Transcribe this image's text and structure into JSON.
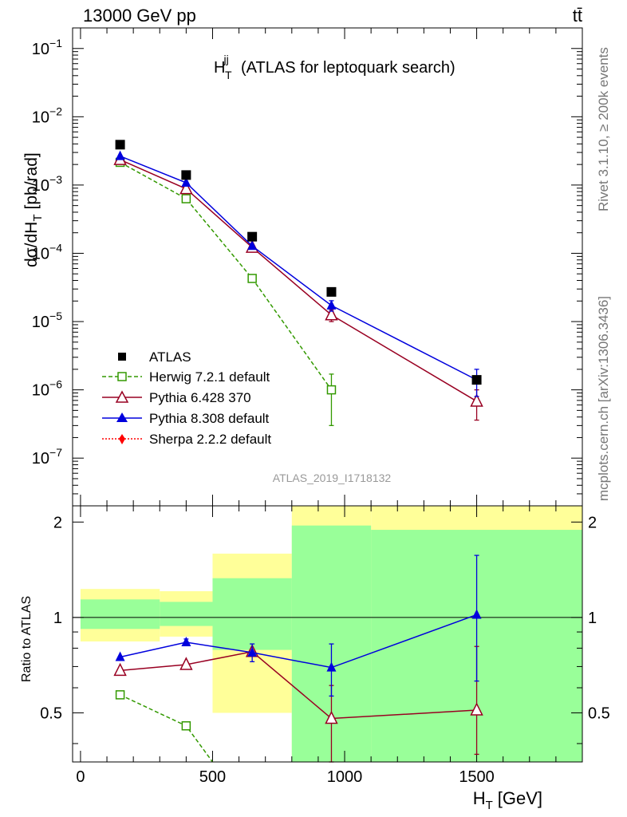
{
  "header": {
    "left": "13000 GeV pp",
    "right": "tt̄"
  },
  "side_labels": {
    "rivet": "Rivet 3.1.10, ≥ 200k events",
    "mcplots": "mcplots.cern.ch [arXiv:1306.3436]"
  },
  "watermark": "ATLAS_2019_I1718132",
  "chart_data": [
    {
      "type": "scatter",
      "title": "H_T^jj (ATLAS for leptoquark search)",
      "title_main": "H",
      "title_sup": "jj",
      "title_sub": "T",
      "title_rest": "(ATLAS for leptoquark search)",
      "ylabel": "dσ/dH_T [pb/rad]",
      "ylabel_main": "dσ/dH",
      "ylabel_sub": "T",
      "ylabel_rest": "[pb/rad]",
      "yscale": "log",
      "ylim": [
        2e-08,
        0.2
      ],
      "xlim": [
        -30,
        1900
      ],
      "ytick_labels": [
        {
          "base": "10",
          "exp": "−1",
          "value": 0.1
        },
        {
          "base": "10",
          "exp": "−2",
          "value": 0.01
        },
        {
          "base": "10",
          "exp": "−3",
          "value": 0.001
        },
        {
          "base": "10",
          "exp": "−4",
          "value": 0.0001
        },
        {
          "base": "10",
          "exp": "−5",
          "value": 1e-05
        },
        {
          "base": "10",
          "exp": "−6",
          "value": 1e-06
        },
        {
          "base": "10",
          "exp": "−7",
          "value": 1e-07
        }
      ],
      "legend_position": "bottom-left",
      "series": [
        {
          "name": "ATLAS",
          "color": "#000000",
          "marker": "square-filled",
          "line": "none",
          "x": [
            150,
            400,
            650,
            950,
            1500
          ],
          "y": [
            0.0039,
            0.0014,
            0.000175,
            2.72e-05,
            1.4e-06
          ]
        },
        {
          "name": "Herwig 7.2.1 default",
          "color": "#339900",
          "marker": "square-open",
          "line": "dashed",
          "x": [
            150,
            400,
            650,
            950
          ],
          "y": [
            0.00215,
            0.00063,
            4.28e-05,
            1e-06
          ],
          "err_low": [
            0,
            0,
            0,
            7e-07
          ],
          "err_high": [
            0,
            0,
            0,
            7e-07
          ]
        },
        {
          "name": "Pythia 6.428 370",
          "color": "#990022",
          "marker": "triangle-open",
          "line": "solid",
          "x": [
            150,
            400,
            650,
            950,
            1500
          ],
          "y": [
            0.00235,
            0.00088,
            0.000122,
            1.25e-05,
            6.8e-07
          ],
          "err_low": [
            0,
            0,
            0,
            2.5e-06,
            3.2e-07
          ],
          "err_high": [
            0,
            0,
            0,
            2.5e-06,
            3.2e-07
          ]
        },
        {
          "name": "Pythia 8.308 default",
          "color": "#0000dd",
          "marker": "triangle-filled",
          "line": "solid",
          "x": [
            150,
            400,
            650,
            950,
            1500
          ],
          "y": [
            0.00265,
            0.00108,
            0.000128,
            1.72e-05,
            1.4e-06
          ],
          "err_low": [
            0,
            0,
            0,
            3e-06,
            6e-07
          ],
          "err_high": [
            0,
            0,
            0,
            3e-06,
            6e-07
          ]
        },
        {
          "name": "Sherpa 2.2.2 default",
          "color": "#ff0000",
          "marker": "diamond-filled",
          "line": "dotted",
          "x": [],
          "y": []
        }
      ]
    },
    {
      "type": "scatter",
      "ylabel": "Ratio to ATLAS",
      "xlabel": "H_T [GeV]",
      "xlabel_main": "H",
      "xlabel_sub": "T",
      "xlabel_rest": "[GeV]",
      "xlim": [
        -30,
        1900
      ],
      "ylim": [
        0.35,
        2.25
      ],
      "ytick_labels": [
        "0.5",
        "1",
        "2"
      ],
      "ytick_values": [
        0.5,
        1,
        2
      ],
      "xtick_labels": [
        "0",
        "500",
        "1000",
        "1500"
      ],
      "xtick_values": [
        0,
        500,
        1000,
        1500
      ],
      "reference_line": 1,
      "bands": [
        {
          "x0": 0,
          "x1": 300,
          "yellow": [
            0.84,
            1.23
          ],
          "green": [
            0.92,
            1.14
          ]
        },
        {
          "x0": 300,
          "x1": 500,
          "yellow": [
            0.87,
            1.21
          ],
          "green": [
            0.94,
            1.12
          ]
        },
        {
          "x0": 500,
          "x1": 800,
          "yellow": [
            0.5,
            1.59
          ],
          "green": [
            0.79,
            1.33
          ]
        },
        {
          "x0": 800,
          "x1": 1100,
          "yellow": [
            0.35,
            2.25
          ],
          "green": [
            0.35,
            1.95
          ]
        },
        {
          "x0": 1100,
          "x1": 1900,
          "yellow": [
            0.35,
            2.25
          ],
          "green": [
            0.35,
            1.89
          ]
        }
      ],
      "band_colors": {
        "yellow": "#ffff99",
        "green": "#99ff99"
      },
      "series": [
        {
          "name": "Herwig 7.2.1 default",
          "color": "#339900",
          "marker": "square-open",
          "line": "dashed",
          "x": [
            150,
            400,
            500
          ],
          "y": [
            0.57,
            0.455,
            0.35
          ],
          "markers": [
            true,
            true,
            false
          ]
        },
        {
          "name": "Pythia 6.428 370",
          "color": "#990022",
          "marker": "triangle-open",
          "line": "solid",
          "x": [
            150,
            400,
            650,
            950,
            1500
          ],
          "y": [
            0.68,
            0.71,
            0.78,
            0.48,
            0.51
          ],
          "err_low": [
            0,
            0,
            0,
            0.13,
            0.14
          ],
          "err_high": [
            0,
            0,
            0,
            0.13,
            0.3
          ]
        },
        {
          "name": "Pythia 8.308 default",
          "color": "#0000dd",
          "marker": "triangle-filled",
          "line": "solid",
          "x": [
            150,
            400,
            650,
            950,
            1500
          ],
          "y": [
            0.75,
            0.835,
            0.775,
            0.695,
            1.02
          ],
          "err_low": [
            0,
            0.02,
            0.05,
            0.13,
            0.39
          ],
          "err_high": [
            0,
            0.02,
            0.05,
            0.13,
            0.55
          ]
        }
      ]
    }
  ]
}
